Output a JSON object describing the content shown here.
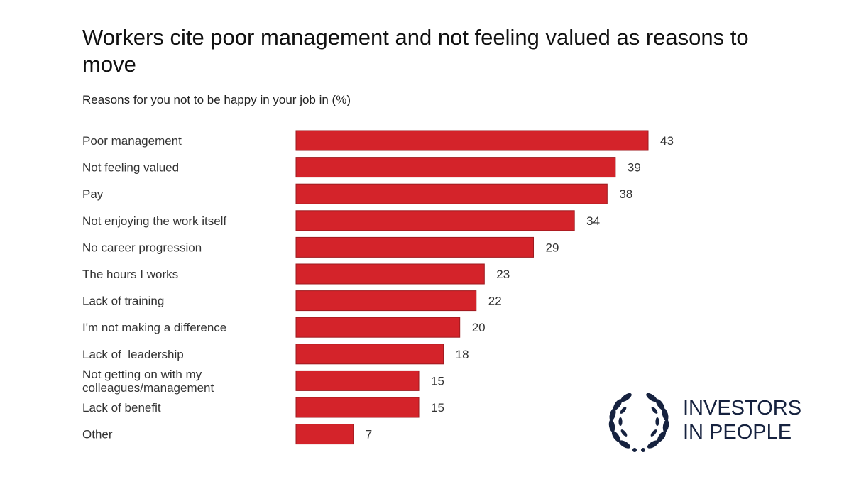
{
  "chart_data": {
    "type": "bar",
    "orientation": "horizontal",
    "title": "Workers cite poor management and not feeling valued as reasons to move",
    "subtitle": "Reasons for you not to be happy in your job in (%)",
    "categories": [
      [
        "Poor management"
      ],
      [
        "Not feeling valued"
      ],
      [
        "Pay"
      ],
      [
        "Not enjoying the work itself"
      ],
      [
        "No career progression"
      ],
      [
        "The hours I works"
      ],
      [
        "Lack of training"
      ],
      [
        "I'm not making a difference"
      ],
      [
        "Lack of  leadership"
      ],
      [
        "Not getting on with my",
        "colleagues/management"
      ],
      [
        "Lack of benefit"
      ],
      [
        "Other"
      ]
    ],
    "values": [
      43,
      39,
      38,
      34,
      29,
      23,
      22,
      20,
      18,
      15,
      15,
      7
    ],
    "xlim": [
      0,
      43
    ],
    "grid": false,
    "legend": "none",
    "bar_color": "#d4232a",
    "bar_edge_color": "#9e1a1f"
  },
  "logo": {
    "line1": "INVESTORS",
    "line2": "IN PEOPLE",
    "color": "#16223f"
  }
}
